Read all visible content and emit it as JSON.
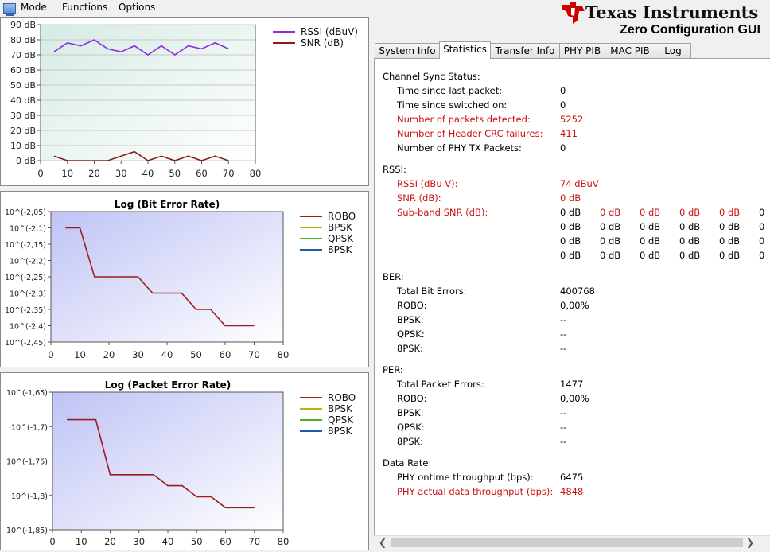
{
  "menu": {
    "mode": "Mode",
    "functions": "Functions",
    "options": "Options"
  },
  "brand": {
    "company": "Texas Instruments",
    "app_title": "Zero Configuration GUI"
  },
  "tabs": [
    {
      "label": "System Info"
    },
    {
      "label": "Statistics",
      "active": true
    },
    {
      "label": "Transfer Info"
    },
    {
      "label": "PHY PIB"
    },
    {
      "label": "MAC PIB"
    },
    {
      "label": "Log"
    }
  ],
  "colors": {
    "rssi": "#8a2be2",
    "snr": "#8b1a1a",
    "robo": "#9b1c1c",
    "bpsk": "#b8b800",
    "qpsk": "#4caf1c",
    "psk8": "#1c5fa8",
    "highlight": "#cc1111"
  },
  "chart_data": [
    {
      "type": "line",
      "title": "",
      "y_tick_labels": [
        "0 dB",
        "10 dB",
        "20 dB",
        "30 dB",
        "40 dB",
        "50 dB",
        "60 dB",
        "70 dB",
        "80 dB",
        "90 dB"
      ],
      "x_tick_labels": [
        "0",
        "10",
        "20",
        "30",
        "40",
        "50",
        "60",
        "70",
        "80"
      ],
      "xlim": [
        0,
        80
      ],
      "ylim": [
        0,
        90
      ],
      "grid": true,
      "legend": "top-right",
      "series": [
        {
          "name": "RSSI (dBuV)",
          "x": [
            5,
            10,
            15,
            20,
            25,
            30,
            35,
            40,
            45,
            50,
            55,
            60,
            65,
            70
          ],
          "y": [
            72,
            78,
            76,
            80,
            74,
            72,
            76,
            70,
            76,
            70,
            76,
            74,
            78,
            74
          ]
        },
        {
          "name": "SNR (dB)",
          "x": [
            5,
            10,
            15,
            20,
            25,
            30,
            35,
            40,
            45,
            50,
            55,
            60,
            65,
            70
          ],
          "y": [
            3,
            0,
            0,
            0,
            0,
            3,
            6,
            0,
            3,
            0,
            3,
            0,
            3,
            0
          ]
        }
      ]
    },
    {
      "type": "line",
      "title": "Log (Bit Error Rate)",
      "y_tick_labels": [
        "10^(-2,05)",
        "10^(-2,1)",
        "10^(-2,15)",
        "10^(-2,2)",
        "10^(-2,25)",
        "10^(-2,3)",
        "10^(-2,35)",
        "10^(-2,4)",
        "10^(-2,45)"
      ],
      "x_tick_labels": [
        "0",
        "10",
        "20",
        "30",
        "40",
        "50",
        "60",
        "70",
        "80"
      ],
      "xlim": [
        0,
        80
      ],
      "ylim": [
        -2.45,
        -2.05
      ],
      "legend": "right",
      "series": [
        {
          "name": "ROBO",
          "x": [
            5,
            10,
            15,
            20,
            25,
            30,
            35,
            40,
            45,
            50,
            55,
            60,
            65,
            70
          ],
          "y": [
            -2.1,
            -2.1,
            -2.25,
            -2.25,
            -2.25,
            -2.25,
            -2.3,
            -2.3,
            -2.3,
            -2.35,
            -2.35,
            -2.4,
            -2.4,
            -2.4
          ]
        },
        {
          "name": "BPSK",
          "x": [],
          "y": []
        },
        {
          "name": "QPSK",
          "x": [],
          "y": []
        },
        {
          "name": "8PSK",
          "x": [],
          "y": []
        }
      ]
    },
    {
      "type": "line",
      "title": "Log (Packet Error Rate)",
      "y_tick_labels": [
        "10^(-1,65)",
        "10^(-1,7)",
        "10^(-1,75)",
        "10^(-1,8)",
        "10^(-1,85)"
      ],
      "x_tick_labels": [
        "0",
        "10",
        "20",
        "30",
        "40",
        "50",
        "60",
        "70",
        "80"
      ],
      "xlim": [
        0,
        80
      ],
      "ylim": [
        -1.9,
        -1.65
      ],
      "legend": "right",
      "series": [
        {
          "name": "ROBO",
          "x": [
            5,
            10,
            15,
            20,
            25,
            30,
            35,
            40,
            45,
            50,
            55,
            60,
            65,
            70
          ],
          "y": [
            -1.7,
            -1.7,
            -1.7,
            -1.8,
            -1.8,
            -1.8,
            -1.8,
            -1.82,
            -1.82,
            -1.84,
            -1.84,
            -1.86,
            -1.86,
            -1.86
          ]
        },
        {
          "name": "BPSK",
          "x": [],
          "y": []
        },
        {
          "name": "QPSK",
          "x": [],
          "y": []
        },
        {
          "name": "8PSK",
          "x": [],
          "y": []
        }
      ]
    }
  ],
  "stats": {
    "channel_sync": {
      "heading": "Channel Sync Status:",
      "rows": [
        {
          "label": "Time since last packet:",
          "value": "0",
          "highlight": false
        },
        {
          "label": "Time since switched on:",
          "value": "0",
          "highlight": false
        },
        {
          "label": "Number of packets detected:",
          "value": "5252",
          "highlight": true
        },
        {
          "label": "Number of Header CRC failures:",
          "value": "411",
          "highlight": true
        },
        {
          "label": "Number of PHY TX Packets:",
          "value": "0",
          "highlight": false
        }
      ]
    },
    "rssi": {
      "heading": "RSSI:",
      "rows": [
        {
          "label": "RSSI (dBu V):",
          "value": "74 dBuV",
          "highlight": true
        },
        {
          "label": "SNR (dB):",
          "value": "0 dB",
          "highlight": true
        }
      ],
      "subband_label": "Sub-band SNR (dB):",
      "subband_values": [
        [
          "0 dB",
          "0 dB",
          "0 dB",
          "0 dB",
          "0 dB",
          "0"
        ],
        [
          "0 dB",
          "0 dB",
          "0 dB",
          "0 dB",
          "0 dB",
          "0"
        ],
        [
          "0 dB",
          "0 dB",
          "0 dB",
          "0 dB",
          "0 dB",
          "0"
        ],
        [
          "0 dB",
          "0 dB",
          "0 dB",
          "0 dB",
          "0 dB",
          "0"
        ]
      ],
      "subband_highlight_first_row": true
    },
    "ber": {
      "heading": "BER:",
      "rows": [
        {
          "label": "Total Bit Errors:",
          "value": "400768",
          "highlight": false
        },
        {
          "label": "ROBO:",
          "value": "0,00%",
          "highlight": false
        },
        {
          "label": "BPSK:",
          "value": "--",
          "highlight": false
        },
        {
          "label": "QPSK:",
          "value": "--",
          "highlight": false
        },
        {
          "label": "8PSK:",
          "value": "--",
          "highlight": false
        }
      ]
    },
    "per": {
      "heading": "PER:",
      "rows": [
        {
          "label": "Total Packet Errors:",
          "value": "1477",
          "highlight": false
        },
        {
          "label": "ROBO:",
          "value": "0,00%",
          "highlight": false
        },
        {
          "label": "BPSK:",
          "value": "--",
          "highlight": false
        },
        {
          "label": "QPSK:",
          "value": "--",
          "highlight": false
        },
        {
          "label": "8PSK:",
          "value": "--",
          "highlight": false
        }
      ]
    },
    "data_rate": {
      "heading": "Data Rate:",
      "rows": [
        {
          "label": "PHY ontime throughput (bps):",
          "value": "6475",
          "highlight": false
        },
        {
          "label": "PHY actual data throughput (bps):",
          "value": "4848",
          "highlight": true
        }
      ]
    }
  }
}
